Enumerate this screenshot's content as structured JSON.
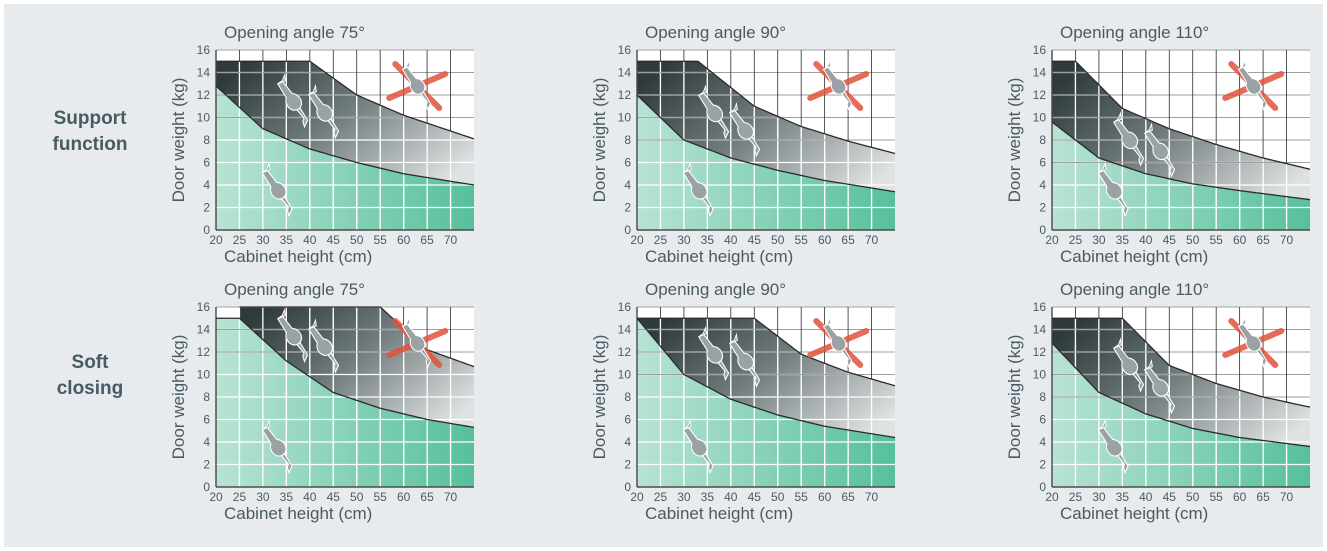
{
  "row_labels": [
    {
      "line1": "Support",
      "line2": "function"
    },
    {
      "line1": "Soft",
      "line2": "closing"
    }
  ],
  "colors": {
    "background": "#e8ebee",
    "green_light": "#b8e3d4",
    "green_dark": "#56c09b",
    "gray_dark": "#2f3a3d",
    "gray_light": "#dfe2e2",
    "grid": "#ffffff",
    "cross": "#e0533b",
    "hinge": "#9aa2a6"
  },
  "chart_data": [
    {
      "type": "area",
      "title": "Opening angle 75°",
      "xlabel": "Cabinet height (cm)",
      "ylabel": "Door weight (kg)",
      "xlim": [
        20,
        75
      ],
      "ylim": [
        0,
        16
      ],
      "xticks": [
        20,
        25,
        30,
        35,
        40,
        45,
        50,
        55,
        60,
        65,
        70
      ],
      "yticks": [
        0,
        2,
        4,
        6,
        8,
        10,
        12,
        14,
        16
      ],
      "grid": true,
      "series": [
        {
          "x": [
            20,
            30,
            40,
            50,
            60,
            75
          ],
          "values": [
            12.8,
            9.0,
            7.2,
            6.0,
            5.0,
            4.0
          ]
        },
        {
          "x": [
            20,
            40,
            50,
            60,
            75
          ],
          "values": [
            15.0,
            15.0,
            12.0,
            10.2,
            8.1
          ]
        }
      ]
    },
    {
      "type": "area",
      "title": "Opening angle 90°",
      "xlabel": "Cabinet height (cm)",
      "ylabel": "Door weight (kg)",
      "xlim": [
        20,
        75
      ],
      "ylim": [
        0,
        16
      ],
      "xticks": [
        20,
        25,
        30,
        35,
        40,
        45,
        50,
        55,
        60,
        65,
        70
      ],
      "yticks": [
        0,
        2,
        4,
        6,
        8,
        10,
        12,
        14,
        16
      ],
      "grid": true,
      "series": [
        {
          "x": [
            20,
            30,
            40,
            50,
            60,
            75
          ],
          "values": [
            12.0,
            8.0,
            6.4,
            5.3,
            4.4,
            3.4
          ]
        },
        {
          "x": [
            20,
            33,
            45,
            55,
            65,
            75
          ],
          "values": [
            15.0,
            15.0,
            11.0,
            9.2,
            7.9,
            6.8
          ]
        }
      ]
    },
    {
      "type": "area",
      "title": "Opening angle 110°",
      "xlabel": "Cabinet height (cm)",
      "ylabel": "Door weight (kg)",
      "xlim": [
        20,
        75
      ],
      "ylim": [
        0,
        16
      ],
      "xticks": [
        20,
        25,
        30,
        35,
        40,
        45,
        50,
        55,
        60,
        65,
        70
      ],
      "yticks": [
        0,
        2,
        4,
        6,
        8,
        10,
        12,
        14,
        16
      ],
      "grid": true,
      "series": [
        {
          "x": [
            20,
            30,
            40,
            50,
            60,
            75
          ],
          "values": [
            9.6,
            6.4,
            5.0,
            4.1,
            3.5,
            2.7
          ]
        },
        {
          "x": [
            20,
            25,
            35,
            45,
            55,
            65,
            75
          ],
          "values": [
            15.0,
            15.0,
            10.8,
            9.0,
            7.6,
            6.4,
            5.4
          ]
        }
      ]
    },
    {
      "type": "area",
      "title": "Opening angle 75°",
      "xlabel": "Cabinet height (cm)",
      "ylabel": "Door weight (kg)",
      "xlim": [
        20,
        75
      ],
      "ylim": [
        0,
        16
      ],
      "xticks": [
        20,
        25,
        30,
        35,
        40,
        45,
        50,
        55,
        60,
        65,
        70
      ],
      "yticks": [
        0,
        2,
        4,
        6,
        8,
        10,
        12,
        14,
        16
      ],
      "grid": true,
      "series": [
        {
          "x": [
            20,
            25,
            35,
            45,
            55,
            65,
            75
          ],
          "values": [
            15.0,
            15.0,
            11.2,
            8.4,
            7.0,
            6.0,
            5.3
          ]
        },
        {
          "x": [
            25,
            55,
            65,
            75
          ],
          "values": [
            16.0,
            16.0,
            12.2,
            10.7
          ]
        }
      ]
    },
    {
      "type": "area",
      "title": "Opening angle 90°",
      "xlabel": "Cabinet height (cm)",
      "ylabel": "Door weight (kg)",
      "xlim": [
        20,
        75
      ],
      "ylim": [
        0,
        16
      ],
      "xticks": [
        20,
        25,
        30,
        35,
        40,
        45,
        50,
        55,
        60,
        65,
        70
      ],
      "yticks": [
        0,
        2,
        4,
        6,
        8,
        10,
        12,
        14,
        16
      ],
      "grid": true,
      "series": [
        {
          "x": [
            20,
            30,
            40,
            50,
            60,
            75
          ],
          "values": [
            15.0,
            10.0,
            7.8,
            6.4,
            5.4,
            4.4
          ]
        },
        {
          "x": [
            20,
            45,
            55,
            65,
            75
          ],
          "values": [
            15.0,
            15.0,
            11.8,
            10.2,
            9.0
          ]
        }
      ]
    },
    {
      "type": "area",
      "title": "Opening angle 110°",
      "xlabel": "Cabinet height (cm)",
      "ylabel": "Door weight (kg)",
      "xlim": [
        20,
        75
      ],
      "ylim": [
        0,
        16
      ],
      "xticks": [
        20,
        25,
        30,
        35,
        40,
        45,
        50,
        55,
        60,
        65,
        70
      ],
      "yticks": [
        0,
        2,
        4,
        6,
        8,
        10,
        12,
        14,
        16
      ],
      "grid": true,
      "series": [
        {
          "x": [
            20,
            30,
            40,
            50,
            60,
            75
          ],
          "values": [
            12.8,
            8.4,
            6.5,
            5.2,
            4.4,
            3.6
          ]
        },
        {
          "x": [
            20,
            35,
            45,
            55,
            65,
            75
          ],
          "values": [
            15.0,
            15.0,
            10.8,
            9.2,
            8.0,
            7.1
          ]
        }
      ]
    }
  ]
}
